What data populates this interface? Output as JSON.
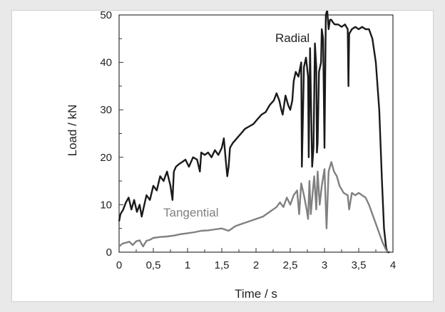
{
  "chart_data": {
    "type": "line",
    "title": "",
    "xlabel": "Time / s",
    "ylabel": "Load  / kN",
    "xlim": [
      0,
      4
    ],
    "ylim": [
      0,
      50
    ],
    "x_ticks": [
      0,
      0.5,
      1,
      1.5,
      2,
      2.5,
      3,
      3.5,
      4
    ],
    "x_tick_labels": [
      "0",
      "0,5",
      "1",
      "1,5",
      "2",
      "2,5",
      "3",
      "3,5",
      "4"
    ],
    "y_ticks": [
      0,
      10,
      20,
      30,
      40,
      50
    ],
    "y_tick_labels": [
      "0",
      "10",
      "20",
      "30",
      "40",
      "50"
    ],
    "grid": false,
    "legend": "none",
    "series": [
      {
        "name": "Radial",
        "color": "#1a1a1a",
        "x": [
          0,
          0.02,
          0.06,
          0.1,
          0.14,
          0.18,
          0.22,
          0.26,
          0.3,
          0.33,
          0.36,
          0.4,
          0.45,
          0.5,
          0.55,
          0.6,
          0.65,
          0.7,
          0.75,
          0.78,
          0.8,
          0.83,
          0.87,
          0.92,
          0.97,
          1.02,
          1.08,
          1.14,
          1.18,
          1.2,
          1.25,
          1.3,
          1.35,
          1.4,
          1.45,
          1.5,
          1.53,
          1.56,
          1.58,
          1.6,
          1.62,
          1.66,
          1.72,
          1.78,
          1.84,
          1.9,
          1.96,
          2.02,
          2.08,
          2.14,
          2.2,
          2.26,
          2.3,
          2.34,
          2.37,
          2.39,
          2.41,
          2.43,
          2.47,
          2.5,
          2.53,
          2.55,
          2.58,
          2.62,
          2.66,
          2.67,
          2.7,
          2.73,
          2.76,
          2.77,
          2.79,
          2.82,
          2.84,
          2.86,
          2.88,
          2.89,
          2.9,
          2.92,
          2.95,
          2.96,
          2.98,
          3.0,
          3.02,
          3.04,
          3.06,
          3.08,
          3.1,
          3.12,
          3.15,
          3.2,
          3.25,
          3.3,
          3.34,
          3.35,
          3.36,
          3.4,
          3.45,
          3.5,
          3.55,
          3.6,
          3.65,
          3.7,
          3.75,
          3.8,
          3.84,
          3.87,
          3.9,
          3.92,
          3.95
        ],
        "values": [
          6.5,
          8,
          9,
          10.5,
          11.5,
          9,
          11,
          8.5,
          10,
          7.5,
          9.5,
          12,
          11,
          14,
          13,
          16,
          15,
          17,
          14,
          11,
          17,
          18,
          18.5,
          19,
          19.5,
          18,
          20,
          19.5,
          17,
          21,
          20.5,
          21,
          20,
          21.5,
          20.5,
          22,
          24,
          19,
          16,
          18,
          22,
          23,
          24,
          25,
          26,
          26.5,
          27,
          28,
          29,
          29.5,
          31,
          32,
          33.5,
          32,
          30,
          29,
          31,
          33,
          31,
          30,
          32,
          36,
          38,
          37,
          40,
          18,
          39,
          41,
          37,
          20,
          43,
          18,
          22,
          44,
          39,
          21,
          23,
          38,
          40,
          47,
          45,
          22,
          50,
          51,
          47,
          49,
          49,
          48.5,
          48,
          48,
          47.5,
          48,
          47,
          35,
          46,
          47,
          47.5,
          47,
          47.5,
          47,
          47,
          45,
          40,
          30,
          15,
          5,
          1,
          0,
          0
        ]
      },
      {
        "name": "Tangential",
        "color": "#808080",
        "x": [
          0,
          0.05,
          0.1,
          0.15,
          0.2,
          0.25,
          0.3,
          0.35,
          0.4,
          0.45,
          0.5,
          0.6,
          0.7,
          0.8,
          0.9,
          1.0,
          1.1,
          1.2,
          1.3,
          1.4,
          1.5,
          1.6,
          1.7,
          1.8,
          1.9,
          2.0,
          2.1,
          2.2,
          2.3,
          2.35,
          2.4,
          2.45,
          2.5,
          2.55,
          2.6,
          2.63,
          2.66,
          2.7,
          2.74,
          2.76,
          2.78,
          2.8,
          2.83,
          2.85,
          2.88,
          2.9,
          2.93,
          2.96,
          3.0,
          3.03,
          3.06,
          3.08,
          3.1,
          3.14,
          3.18,
          3.22,
          3.28,
          3.34,
          3.36,
          3.4,
          3.45,
          3.5,
          3.55,
          3.6,
          3.65,
          3.7,
          3.75,
          3.8,
          3.85,
          3.9,
          3.93
        ],
        "values": [
          1.2,
          1.8,
          2,
          2.2,
          1.5,
          2.3,
          2.5,
          1.2,
          2.4,
          2.6,
          3,
          3.2,
          3.3,
          3.5,
          3.8,
          4,
          4.2,
          4.5,
          4.6,
          4.8,
          5,
          4.5,
          5.5,
          6,
          6.5,
          7,
          7.5,
          8.5,
          9.5,
          10.5,
          9.5,
          11.5,
          10,
          12,
          13,
          8,
          14.5,
          12,
          9,
          7,
          15,
          8,
          13,
          16,
          9,
          17,
          10,
          14,
          17.5,
          5,
          17,
          18,
          19,
          17,
          16,
          14,
          12.5,
          12,
          9,
          12.5,
          12,
          12.5,
          12,
          11.5,
          10,
          8,
          6,
          4,
          2,
          0.5,
          0
        ]
      }
    ],
    "annotations": [
      "Radial",
      "Tangential"
    ]
  }
}
